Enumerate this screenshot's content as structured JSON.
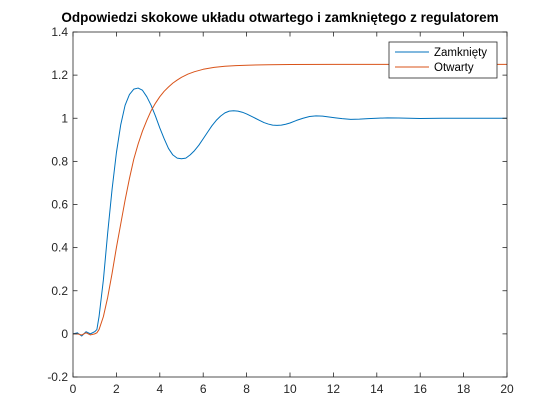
{
  "chart_data": {
    "type": "line",
    "title": "Odpowiedzi skokowe układu otwartego i zamkniętego z regulatorem",
    "xlabel": "",
    "ylabel": "",
    "xlim": [
      0,
      20
    ],
    "ylim": [
      -0.2,
      1.4
    ],
    "xticks": [
      0,
      2,
      4,
      6,
      8,
      10,
      12,
      14,
      16,
      18,
      20
    ],
    "yticks": [
      -0.2,
      0,
      0.2,
      0.4,
      0.6,
      0.8,
      1,
      1.2,
      1.4
    ],
    "grid": false,
    "legend": {
      "placement": "top-right"
    },
    "series": [
      {
        "name": "Zamknięty",
        "color": "#0072bd",
        "x": [
          0,
          0.2,
          0.4,
          0.6,
          0.8,
          1.0,
          1.1,
          1.2,
          1.4,
          1.6,
          1.8,
          2.0,
          2.2,
          2.4,
          2.6,
          2.8,
          3.0,
          3.2,
          3.4,
          3.6,
          3.8,
          4.0,
          4.2,
          4.4,
          4.6,
          4.8,
          5.0,
          5.2,
          5.4,
          5.6,
          5.8,
          6.0,
          6.2,
          6.4,
          6.6,
          6.8,
          7.0,
          7.2,
          7.4,
          7.6,
          7.8,
          8.0,
          8.2,
          8.4,
          8.6,
          8.8,
          9.0,
          9.2,
          9.4,
          9.6,
          9.8,
          10.0,
          10.3,
          10.6,
          10.9,
          11.2,
          11.5,
          11.8,
          12.1,
          12.4,
          12.8,
          13.2,
          13.6,
          14.0,
          14.5,
          15.0,
          16.0,
          17.0,
          18.0,
          19.0,
          20.0
        ],
        "y": [
          0,
          0.005,
          -0.01,
          0.01,
          0,
          0.01,
          0.02,
          0.08,
          0.25,
          0.47,
          0.67,
          0.84,
          0.97,
          1.06,
          1.11,
          1.135,
          1.14,
          1.13,
          1.1,
          1.06,
          1.01,
          0.955,
          0.905,
          0.86,
          0.83,
          0.815,
          0.812,
          0.815,
          0.83,
          0.85,
          0.875,
          0.905,
          0.935,
          0.965,
          0.99,
          1.01,
          1.025,
          1.033,
          1.035,
          1.033,
          1.028,
          1.02,
          1.01,
          1.0,
          0.99,
          0.98,
          0.973,
          0.968,
          0.967,
          0.968,
          0.972,
          0.978,
          0.99,
          1.0,
          1.008,
          1.011,
          1.01,
          1.006,
          1.002,
          0.998,
          0.995,
          0.996,
          0.998,
          1.0,
          1.002,
          1.001,
          0.999,
          1.0,
          1.0,
          1.0,
          1.0
        ]
      },
      {
        "name": "Otwarty",
        "color": "#d95319",
        "x": [
          0,
          0.2,
          0.4,
          0.6,
          0.8,
          1.0,
          1.1,
          1.2,
          1.4,
          1.6,
          1.8,
          2.0,
          2.2,
          2.4,
          2.6,
          2.8,
          3.0,
          3.2,
          3.4,
          3.6,
          3.8,
          4.0,
          4.2,
          4.4,
          4.6,
          4.8,
          5.0,
          5.3,
          5.6,
          6.0,
          6.5,
          7.0,
          7.5,
          8.0,
          9.0,
          10.0,
          12.0,
          14.0,
          16.0,
          18.0,
          20.0
        ],
        "y": [
          0,
          0,
          -0.005,
          0.005,
          -0.005,
          0,
          0.005,
          0.02,
          0.08,
          0.17,
          0.28,
          0.4,
          0.51,
          0.62,
          0.72,
          0.81,
          0.88,
          0.94,
          0.99,
          1.035,
          1.07,
          1.1,
          1.125,
          1.145,
          1.163,
          1.177,
          1.19,
          1.205,
          1.216,
          1.227,
          1.236,
          1.241,
          1.244,
          1.246,
          1.248,
          1.249,
          1.25,
          1.25,
          1.25,
          1.25,
          1.25
        ]
      }
    ]
  }
}
